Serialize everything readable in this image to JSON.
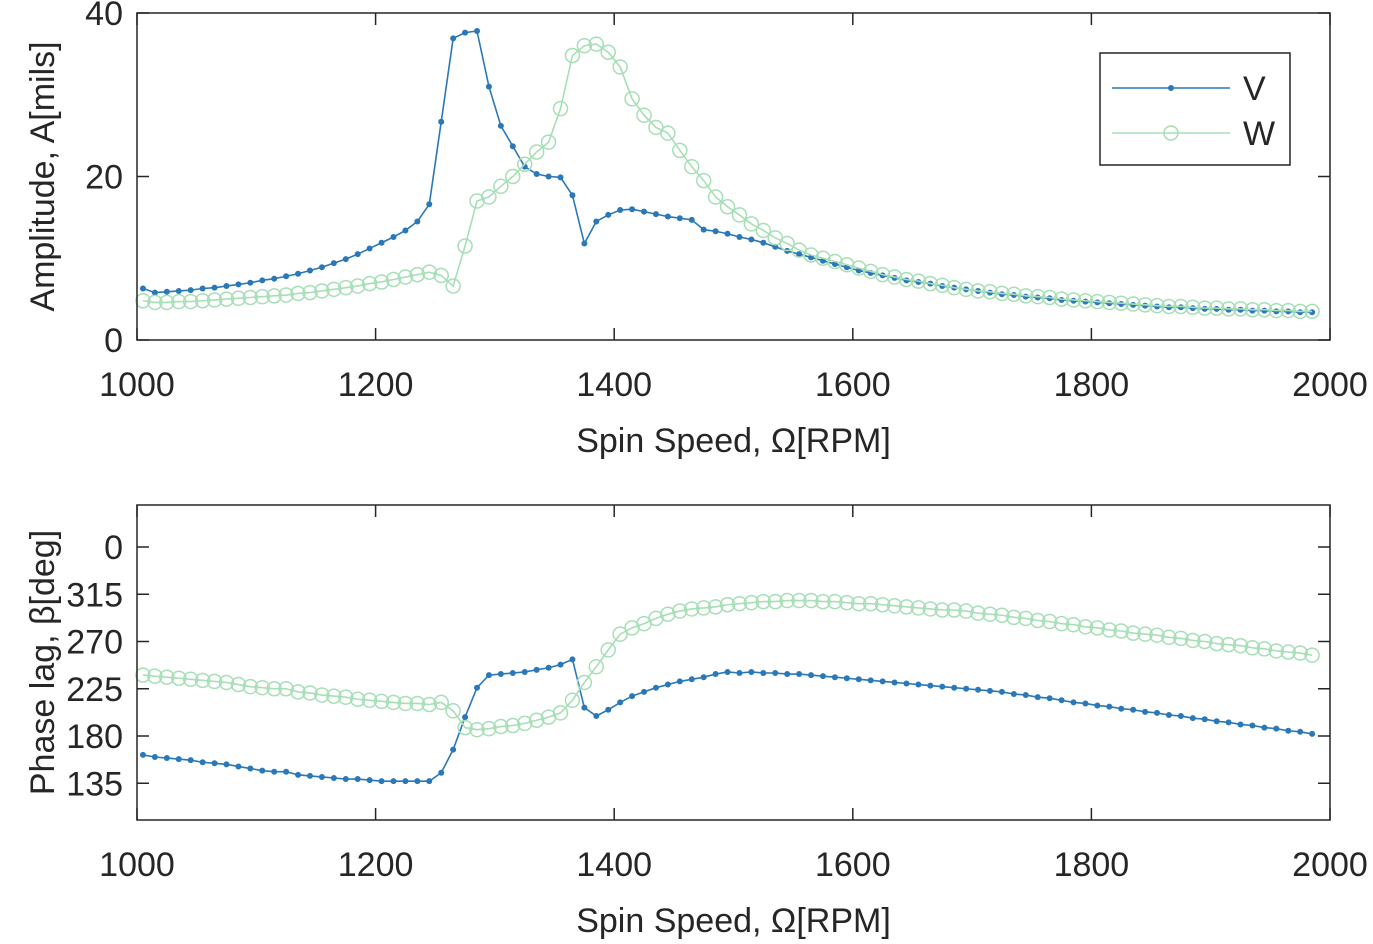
{
  "chart_data": [
    {
      "type": "line",
      "xlabel": "Spin Speed, Ω[RPM]",
      "ylabel": "Amplitude, A[mils]",
      "x": [
        1005,
        1015,
        1025,
        1035,
        1045,
        1055,
        1065,
        1075,
        1085,
        1095,
        1105,
        1115,
        1125,
        1135,
        1145,
        1155,
        1165,
        1175,
        1185,
        1195,
        1205,
        1215,
        1225,
        1235,
        1245,
        1255,
        1265,
        1275,
        1285,
        1295,
        1305,
        1315,
        1325,
        1335,
        1345,
        1355,
        1365,
        1375,
        1385,
        1395,
        1405,
        1415,
        1425,
        1435,
        1445,
        1455,
        1465,
        1475,
        1485,
        1495,
        1505,
        1515,
        1525,
        1535,
        1545,
        1555,
        1565,
        1575,
        1585,
        1595,
        1605,
        1615,
        1625,
        1635,
        1645,
        1655,
        1665,
        1675,
        1685,
        1695,
        1705,
        1715,
        1725,
        1735,
        1745,
        1755,
        1765,
        1775,
        1785,
        1795,
        1805,
        1815,
        1825,
        1835,
        1845,
        1855,
        1865,
        1875,
        1885,
        1895,
        1905,
        1915,
        1925,
        1935,
        1945,
        1955,
        1965,
        1975,
        1985
      ],
      "series": [
        {
          "name": "V",
          "color": "#2a78b8",
          "marker": "dot",
          "values": [
            6.3,
            5.8,
            5.9,
            6.0,
            6.1,
            6.3,
            6.4,
            6.6,
            6.8,
            7.0,
            7.3,
            7.5,
            7.8,
            8.1,
            8.5,
            8.9,
            9.4,
            9.9,
            10.5,
            11.2,
            11.9,
            12.6,
            13.4,
            14.5,
            16.6,
            26.7,
            36.9,
            37.6,
            37.8,
            31.0,
            26.2,
            23.7,
            21.2,
            20.3,
            20.0,
            19.9,
            17.7,
            11.8,
            14.5,
            15.3,
            15.9,
            16.0,
            15.7,
            15.4,
            15.1,
            14.9,
            14.7,
            13.5,
            13.3,
            13.0,
            12.6,
            12.3,
            11.9,
            11.4,
            10.9,
            10.5,
            10.1,
            9.7,
            9.3,
            8.9,
            8.5,
            8.2,
            7.9,
            7.6,
            7.3,
            7.1,
            6.9,
            6.6,
            6.4,
            6.2,
            6.0,
            5.8,
            5.6,
            5.5,
            5.3,
            5.2,
            5.1,
            4.9,
            4.8,
            4.7,
            4.6,
            4.5,
            4.4,
            4.3,
            4.2,
            4.1,
            4.0,
            4.0,
            3.9,
            3.8,
            3.8,
            3.7,
            3.7,
            3.6,
            3.6,
            3.5,
            3.5,
            3.4,
            3.4
          ]
        },
        {
          "name": "W",
          "color": "#a6dfb6",
          "marker": "circle",
          "values": [
            4.8,
            4.6,
            4.6,
            4.7,
            4.7,
            4.8,
            4.9,
            5.0,
            5.1,
            5.2,
            5.3,
            5.4,
            5.5,
            5.7,
            5.8,
            6.0,
            6.2,
            6.4,
            6.6,
            6.9,
            7.1,
            7.4,
            7.7,
            8.0,
            8.3,
            7.9,
            6.6,
            11.5,
            17.0,
            17.5,
            18.8,
            20.0,
            21.5,
            23.0,
            24.2,
            28.3,
            34.8,
            36.0,
            36.2,
            35.2,
            33.4,
            29.5,
            27.5,
            26.0,
            25.3,
            23.2,
            21.2,
            19.5,
            17.5,
            16.3,
            15.3,
            14.2,
            13.4,
            12.5,
            11.8,
            11.0,
            10.4,
            10.0,
            9.6,
            9.2,
            8.8,
            8.4,
            8.0,
            7.7,
            7.4,
            7.2,
            6.9,
            6.7,
            6.4,
            6.2,
            6.0,
            5.9,
            5.7,
            5.6,
            5.4,
            5.3,
            5.2,
            5.0,
            4.9,
            4.8,
            4.7,
            4.6,
            4.5,
            4.4,
            4.3,
            4.2,
            4.1,
            4.1,
            4.0,
            3.9,
            3.9,
            3.8,
            3.8,
            3.7,
            3.7,
            3.6,
            3.6,
            3.5,
            3.5
          ]
        }
      ],
      "xlim": [
        1000,
        2000
      ],
      "xticks": [
        1000,
        1200,
        1400,
        1600,
        1800,
        2000
      ],
      "ylim": [
        0,
        40
      ],
      "yticks": [
        0,
        20,
        40
      ],
      "legend": "upper right"
    },
    {
      "type": "line",
      "xlabel": "Spin Speed, Ω[RPM]",
      "ylabel": "Phase lag, β[deg]",
      "x": [
        1005,
        1015,
        1025,
        1035,
        1045,
        1055,
        1065,
        1075,
        1085,
        1095,
        1105,
        1115,
        1125,
        1135,
        1145,
        1155,
        1165,
        1175,
        1185,
        1195,
        1205,
        1215,
        1225,
        1235,
        1245,
        1255,
        1265,
        1275,
        1285,
        1295,
        1305,
        1315,
        1325,
        1335,
        1345,
        1355,
        1365,
        1375,
        1385,
        1395,
        1405,
        1415,
        1425,
        1435,
        1445,
        1455,
        1465,
        1475,
        1485,
        1495,
        1505,
        1515,
        1525,
        1535,
        1545,
        1555,
        1565,
        1575,
        1585,
        1595,
        1605,
        1615,
        1625,
        1635,
        1645,
        1655,
        1665,
        1675,
        1685,
        1695,
        1705,
        1715,
        1725,
        1735,
        1745,
        1755,
        1765,
        1775,
        1785,
        1795,
        1805,
        1815,
        1825,
        1835,
        1845,
        1855,
        1865,
        1875,
        1885,
        1895,
        1905,
        1915,
        1925,
        1935,
        1945,
        1955,
        1965,
        1975,
        1985
      ],
      "series": [
        {
          "color": "#2a78b8",
          "marker": "dot",
          "values": [
            162,
            160,
            159,
            158,
            157,
            155,
            154,
            153,
            151,
            149,
            147,
            146,
            146,
            143,
            142,
            141,
            140,
            139,
            139,
            138,
            137,
            137,
            137,
            137,
            137,
            145,
            167,
            198,
            226,
            238,
            239,
            240,
            241,
            243,
            245,
            248,
            253,
            207,
            199,
            205,
            212,
            218,
            222,
            226,
            229,
            232,
            234,
            236,
            239,
            241,
            240,
            241,
            240,
            240,
            239,
            239,
            238,
            237,
            236,
            235,
            234,
            233,
            232,
            231,
            230,
            229,
            228,
            227,
            226,
            225,
            224,
            223,
            222,
            220,
            219,
            217,
            216,
            214,
            212,
            211,
            209,
            208,
            206,
            205,
            203,
            202,
            200,
            199,
            197,
            196,
            194,
            193,
            191,
            190,
            188,
            187,
            185,
            184,
            182
          ]
        },
        {
          "color": "#a6dfb6",
          "marker": "circle",
          "values": [
            238,
            237,
            236,
            235,
            234,
            233,
            232,
            231,
            229,
            227,
            226,
            225,
            225,
            222,
            221,
            219,
            218,
            217,
            215,
            214,
            213,
            212,
            211,
            211,
            210,
            212,
            204,
            188,
            186,
            187,
            189,
            190,
            192,
            195,
            198,
            202,
            214,
            231,
            246,
            262,
            277,
            283,
            287,
            292,
            296,
            299,
            301,
            302,
            303,
            305,
            306,
            307,
            308,
            308,
            309,
            309,
            309,
            308,
            308,
            307,
            306,
            306,
            305,
            304,
            303,
            302,
            301,
            300,
            300,
            299,
            297,
            296,
            295,
            293,
            292,
            290,
            289,
            287,
            286,
            284,
            283,
            281,
            280,
            278,
            277,
            276,
            274,
            273,
            271,
            270,
            268,
            267,
            266,
            264,
            263,
            261,
            260,
            259,
            257
          ]
        }
      ],
      "xlim": [
        1000,
        2000
      ],
      "xticks": [
        1000,
        1200,
        1400,
        1600,
        1800,
        2000
      ],
      "ylim": [
        100,
        400
      ],
      "yticks": [
        135,
        180,
        225,
        270,
        315,
        {
          "value": 360,
          "label": "0"
        }
      ]
    }
  ]
}
